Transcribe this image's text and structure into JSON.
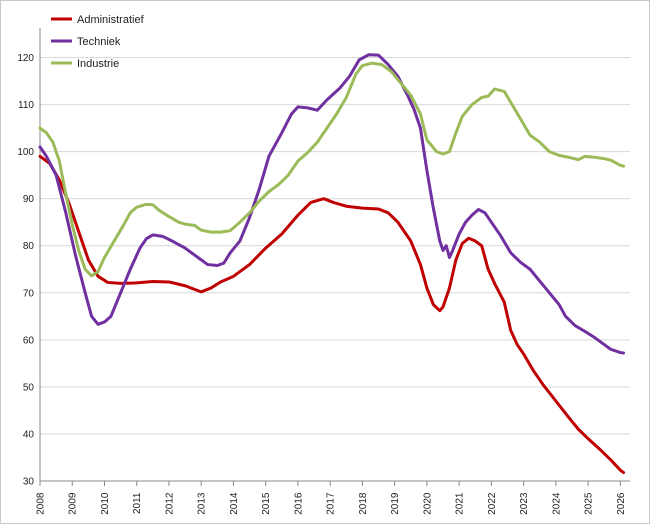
{
  "chart_data": {
    "type": "line",
    "title": "",
    "xlabel": "",
    "ylabel": "",
    "ylim": [
      30,
      125
    ],
    "xlim": [
      2008,
      2026.3
    ],
    "yticks": [
      30,
      40,
      50,
      60,
      70,
      80,
      90,
      100,
      110,
      120
    ],
    "xticks": [
      "2008",
      "2009",
      "2010",
      "2011",
      "2012",
      "2013",
      "2014",
      "2015",
      "2016",
      "2017",
      "2018",
      "2019",
      "2020",
      "2021",
      "2022",
      "2023",
      "2024",
      "2025",
      "2026"
    ],
    "grid": true,
    "legend_position": "top-left",
    "series": [
      {
        "name": "Administratief",
        "color": "#c00000",
        "points": [
          [
            2008.0,
            99.0
          ],
          [
            2008.3,
            97.5
          ],
          [
            2008.6,
            94
          ],
          [
            2008.9,
            89
          ],
          [
            2009.2,
            83
          ],
          [
            2009.5,
            77
          ],
          [
            2009.8,
            73.5
          ],
          [
            2010.1,
            72.2
          ],
          [
            2010.5,
            72
          ],
          [
            2011.0,
            72.1
          ],
          [
            2011.5,
            72.4
          ],
          [
            2012.0,
            72.3
          ],
          [
            2012.5,
            71.5
          ],
          [
            2013.0,
            70.2
          ],
          [
            2013.3,
            71
          ],
          [
            2013.6,
            72.3
          ],
          [
            2014.0,
            73.5
          ],
          [
            2014.5,
            76
          ],
          [
            2015.0,
            79.5
          ],
          [
            2015.5,
            82.5
          ],
          [
            2016.0,
            86.5
          ],
          [
            2016.4,
            89.2
          ],
          [
            2016.8,
            90
          ],
          [
            2017.1,
            89.2
          ],
          [
            2017.5,
            88.4
          ],
          [
            2018.0,
            88
          ],
          [
            2018.5,
            87.8
          ],
          [
            2018.8,
            87
          ],
          [
            2019.1,
            85
          ],
          [
            2019.5,
            81
          ],
          [
            2019.8,
            76
          ],
          [
            2020.0,
            71
          ],
          [
            2020.2,
            67.5
          ],
          [
            2020.4,
            66.2
          ],
          [
            2020.5,
            67
          ],
          [
            2020.7,
            71
          ],
          [
            2020.9,
            77
          ],
          [
            2021.1,
            80.5
          ],
          [
            2021.3,
            81.6
          ],
          [
            2021.5,
            81
          ],
          [
            2021.7,
            80
          ],
          [
            2021.9,
            75
          ],
          [
            2022.1,
            72
          ],
          [
            2022.4,
            68
          ],
          [
            2022.6,
            62
          ],
          [
            2022.8,
            59
          ],
          [
            2023.0,
            57
          ],
          [
            2023.3,
            53.5
          ],
          [
            2023.6,
            50.5
          ],
          [
            2024.0,
            47
          ],
          [
            2024.4,
            43.5
          ],
          [
            2024.7,
            41
          ],
          [
            2025.0,
            39
          ],
          [
            2025.4,
            36.5
          ],
          [
            2025.7,
            34.5
          ],
          [
            2026.0,
            32.3
          ],
          [
            2026.1,
            31.8
          ]
        ]
      },
      {
        "name": "Techniek",
        "color": "#7030a0",
        "points": [
          [
            2008.0,
            101
          ],
          [
            2008.2,
            99
          ],
          [
            2008.5,
            95
          ],
          [
            2008.8,
            87
          ],
          [
            2009.1,
            78
          ],
          [
            2009.4,
            70
          ],
          [
            2009.6,
            65
          ],
          [
            2009.8,
            63.3
          ],
          [
            2010.0,
            63.8
          ],
          [
            2010.2,
            65
          ],
          [
            2010.5,
            70
          ],
          [
            2010.8,
            75
          ],
          [
            2011.1,
            79.5
          ],
          [
            2011.3,
            81.5
          ],
          [
            2011.5,
            82.3
          ],
          [
            2011.8,
            82
          ],
          [
            2012.1,
            81
          ],
          [
            2012.5,
            79.5
          ],
          [
            2012.9,
            77.5
          ],
          [
            2013.2,
            76
          ],
          [
            2013.5,
            75.8
          ],
          [
            2013.7,
            76.3
          ],
          [
            2013.9,
            78.5
          ],
          [
            2014.2,
            81
          ],
          [
            2014.5,
            86
          ],
          [
            2014.8,
            92
          ],
          [
            2015.1,
            99
          ],
          [
            2015.5,
            104
          ],
          [
            2015.8,
            108
          ],
          [
            2016.0,
            109.5
          ],
          [
            2016.3,
            109.3
          ],
          [
            2016.6,
            108.8
          ],
          [
            2016.9,
            111
          ],
          [
            2017.3,
            113.5
          ],
          [
            2017.6,
            116
          ],
          [
            2017.9,
            119.5
          ],
          [
            2018.2,
            120.6
          ],
          [
            2018.5,
            120.5
          ],
          [
            2018.8,
            118.5
          ],
          [
            2019.1,
            116
          ],
          [
            2019.4,
            112
          ],
          [
            2019.6,
            109
          ],
          [
            2019.8,
            105
          ],
          [
            2020.0,
            96
          ],
          [
            2020.2,
            88
          ],
          [
            2020.4,
            81
          ],
          [
            2020.5,
            79
          ],
          [
            2020.6,
            80
          ],
          [
            2020.7,
            77.5
          ],
          [
            2020.8,
            79
          ],
          [
            2021.0,
            82.5
          ],
          [
            2021.2,
            85
          ],
          [
            2021.4,
            86.5
          ],
          [
            2021.6,
            87.7
          ],
          [
            2021.8,
            87
          ],
          [
            2022.0,
            85
          ],
          [
            2022.3,
            82
          ],
          [
            2022.6,
            78.5
          ],
          [
            2022.9,
            76.5
          ],
          [
            2023.2,
            75
          ],
          [
            2023.5,
            72.5
          ],
          [
            2023.8,
            70
          ],
          [
            2024.1,
            67.5
          ],
          [
            2024.3,
            65
          ],
          [
            2024.6,
            63
          ],
          [
            2024.9,
            61.8
          ],
          [
            2025.2,
            60.5
          ],
          [
            2025.5,
            59
          ],
          [
            2025.7,
            58
          ],
          [
            2026.0,
            57.3
          ],
          [
            2026.1,
            57.2
          ]
        ]
      },
      {
        "name": "Industrie",
        "color": "#9bbb59",
        "points": [
          [
            2008.0,
            105
          ],
          [
            2008.2,
            104
          ],
          [
            2008.4,
            102
          ],
          [
            2008.6,
            98
          ],
          [
            2008.8,
            91
          ],
          [
            2009.0,
            84.5
          ],
          [
            2009.2,
            79
          ],
          [
            2009.4,
            75
          ],
          [
            2009.6,
            73.6
          ],
          [
            2009.8,
            74.5
          ],
          [
            2010.0,
            77.5
          ],
          [
            2010.3,
            81
          ],
          [
            2010.6,
            84.5
          ],
          [
            2010.8,
            87
          ],
          [
            2011.0,
            88.2
          ],
          [
            2011.3,
            88.8
          ],
          [
            2011.5,
            88.7
          ],
          [
            2011.7,
            87.5
          ],
          [
            2012.0,
            86.2
          ],
          [
            2012.3,
            85
          ],
          [
            2012.5,
            84.6
          ],
          [
            2012.8,
            84.3
          ],
          [
            2013.0,
            83.3
          ],
          [
            2013.3,
            82.9
          ],
          [
            2013.6,
            82.9
          ],
          [
            2013.9,
            83.2
          ],
          [
            2014.2,
            85
          ],
          [
            2014.5,
            87
          ],
          [
            2014.8,
            89.5
          ],
          [
            2015.1,
            91.5
          ],
          [
            2015.4,
            93
          ],
          [
            2015.7,
            95
          ],
          [
            2016.0,
            98
          ],
          [
            2016.3,
            99.8
          ],
          [
            2016.6,
            102
          ],
          [
            2016.9,
            105
          ],
          [
            2017.2,
            108
          ],
          [
            2017.5,
            111.5
          ],
          [
            2017.8,
            116.5
          ],
          [
            2018.0,
            118.3
          ],
          [
            2018.3,
            118.8
          ],
          [
            2018.6,
            118.5
          ],
          [
            2018.9,
            117
          ],
          [
            2019.2,
            114.5
          ],
          [
            2019.5,
            112
          ],
          [
            2019.8,
            108
          ],
          [
            2020.0,
            102.5
          ],
          [
            2020.3,
            100
          ],
          [
            2020.5,
            99.5
          ],
          [
            2020.7,
            100
          ],
          [
            2020.9,
            104
          ],
          [
            2021.1,
            107.5
          ],
          [
            2021.4,
            110
          ],
          [
            2021.7,
            111.5
          ],
          [
            2021.9,
            111.8
          ],
          [
            2022.1,
            113.3
          ],
          [
            2022.4,
            112.8
          ],
          [
            2022.6,
            110.5
          ],
          [
            2022.9,
            107
          ],
          [
            2023.2,
            103.5
          ],
          [
            2023.5,
            102
          ],
          [
            2023.8,
            100
          ],
          [
            2024.1,
            99.2
          ],
          [
            2024.4,
            98.8
          ],
          [
            2024.7,
            98.3
          ],
          [
            2024.9,
            99
          ],
          [
            2025.2,
            98.8
          ],
          [
            2025.5,
            98.5
          ],
          [
            2025.7,
            98.2
          ],
          [
            2026.0,
            97.1
          ],
          [
            2026.1,
            96.9
          ]
        ]
      }
    ]
  }
}
